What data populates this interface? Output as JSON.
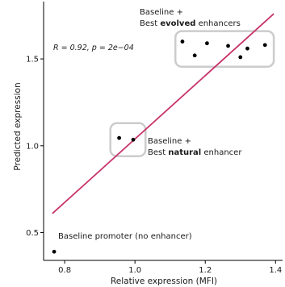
{
  "chart_data": {
    "type": "scatter",
    "title": "",
    "xlabel": "Relative expression (MFI)",
    "ylabel": "Predicted expression",
    "xlim": [
      0.74,
      1.42
    ],
    "ylim": [
      0.34,
      1.83
    ],
    "xticks": [
      0.8,
      1.0,
      1.2,
      1.4
    ],
    "xtick_labels": [
      "0.8",
      "1.0",
      "1.2",
      "1.4"
    ],
    "yticks": [
      0.5,
      1.0,
      1.5
    ],
    "ytick_labels": [
      "0.5",
      "1.0",
      "1.5"
    ],
    "grid": false,
    "legend": null,
    "stat_text": "R = 0.92, p = 2e−04",
    "regression_line": {
      "color": "#c8336b",
      "x": [
        0.765,
        1.395
      ],
      "y": [
        0.61,
        1.76
      ]
    },
    "points": [
      {
        "x": 0.77,
        "y": 0.39
      },
      {
        "x": 0.955,
        "y": 1.045
      },
      {
        "x": 0.995,
        "y": 1.035
      },
      {
        "x": 1.135,
        "y": 1.6
      },
      {
        "x": 1.17,
        "y": 1.52
      },
      {
        "x": 1.205,
        "y": 1.59
      },
      {
        "x": 1.265,
        "y": 1.575
      },
      {
        "x": 1.3,
        "y": 1.51
      },
      {
        "x": 1.32,
        "y": 1.56
      },
      {
        "x": 1.37,
        "y": 1.58
      }
    ],
    "groups": [
      {
        "label_line1": "Baseline +",
        "label_line2_prefix": "Best ",
        "label_line2_bold": "evolved",
        "label_line2_suffix": " enhancers",
        "box": {
          "x0": 1.115,
          "x1": 1.395,
          "y0": 1.455,
          "y1": 1.66
        }
      },
      {
        "label_line1": "Baseline +",
        "label_line2_prefix": "Best ",
        "label_line2_bold": "natural",
        "label_line2_suffix": " enhancer",
        "box": {
          "x0": 0.93,
          "x1": 1.03,
          "y0": 0.94,
          "y1": 1.13
        }
      }
    ],
    "annotations": [
      {
        "text": "Baseline promoter (no enhancer)"
      }
    ],
    "colors": {
      "points": "#000000",
      "box_stroke": "#cccccc",
      "axis": "#000000",
      "line": "#c8336b"
    }
  }
}
